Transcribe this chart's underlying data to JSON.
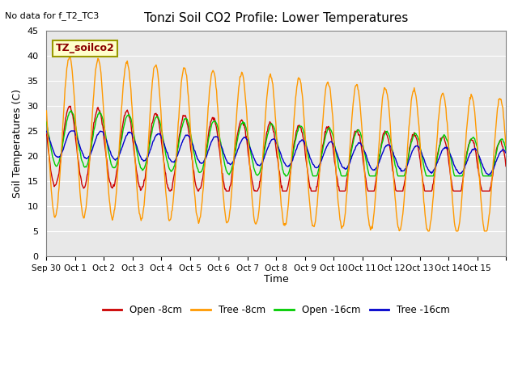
{
  "title": "Tonzi Soil CO2 Profile: Lower Temperatures",
  "subtitle": "No data for f_T2_TC3",
  "ylabel": "Soil Temperatures (C)",
  "xlabel": "Time",
  "watermark": "TZ_soilco2",
  "ylim": [
    0,
    45
  ],
  "yticks": [
    0,
    5,
    10,
    15,
    20,
    25,
    30,
    35,
    40,
    45
  ],
  "xtick_positions": [
    0,
    1,
    2,
    3,
    4,
    5,
    6,
    7,
    8,
    9,
    10,
    11,
    12,
    13,
    14,
    15,
    16
  ],
  "xtick_labels": [
    "Sep 30",
    "Oct 1",
    "Oct 2",
    "Oct 3",
    "Oct 4",
    "Oct 5",
    "Oct 6",
    "Oct 7",
    "Oct 8",
    "Oct 9",
    "Oct 10",
    "Oct 11",
    "Oct 12",
    "Oct 13",
    "Oct 14",
    "Oct 15",
    ""
  ],
  "colors": {
    "open_8cm": "#cc0000",
    "tree_8cm": "#ff9900",
    "open_16cm": "#00cc00",
    "tree_16cm": "#0000cc"
  },
  "legend_labels": [
    "Open -8cm",
    "Tree -8cm",
    "Open -16cm",
    "Tree -16cm"
  ],
  "plot_bg": "#e8e8e8"
}
